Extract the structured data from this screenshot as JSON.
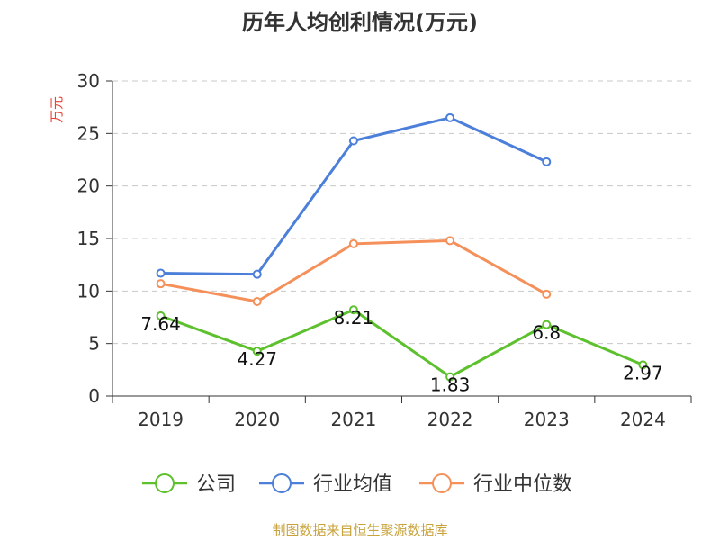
{
  "chart_data": {
    "type": "line",
    "title": "历年人均创利情况(万元)",
    "ylabel": "万元",
    "categories": [
      "2019",
      "2020",
      "2021",
      "2022",
      "2023",
      "2024"
    ],
    "ylim": [
      0,
      30
    ],
    "yticks": [
      0,
      5,
      10,
      15,
      20,
      25,
      30
    ],
    "grid": true,
    "legend_position": "bottom",
    "series": [
      {
        "name": "公司",
        "color": "#5cc12d",
        "values": [
          7.64,
          4.27,
          8.21,
          1.83,
          6.8,
          2.97
        ],
        "show_labels": true
      },
      {
        "name": "行业均值",
        "color": "#4b7fd9",
        "values": [
          11.7,
          11.6,
          24.3,
          26.5,
          22.3,
          null
        ],
        "show_labels": false
      },
      {
        "name": "行业中位数",
        "color": "#f5905a",
        "values": [
          10.7,
          9.0,
          14.5,
          14.8,
          9.7,
          null
        ],
        "show_labels": false
      }
    ],
    "source": "制图数据来自恒生聚源数据库"
  }
}
